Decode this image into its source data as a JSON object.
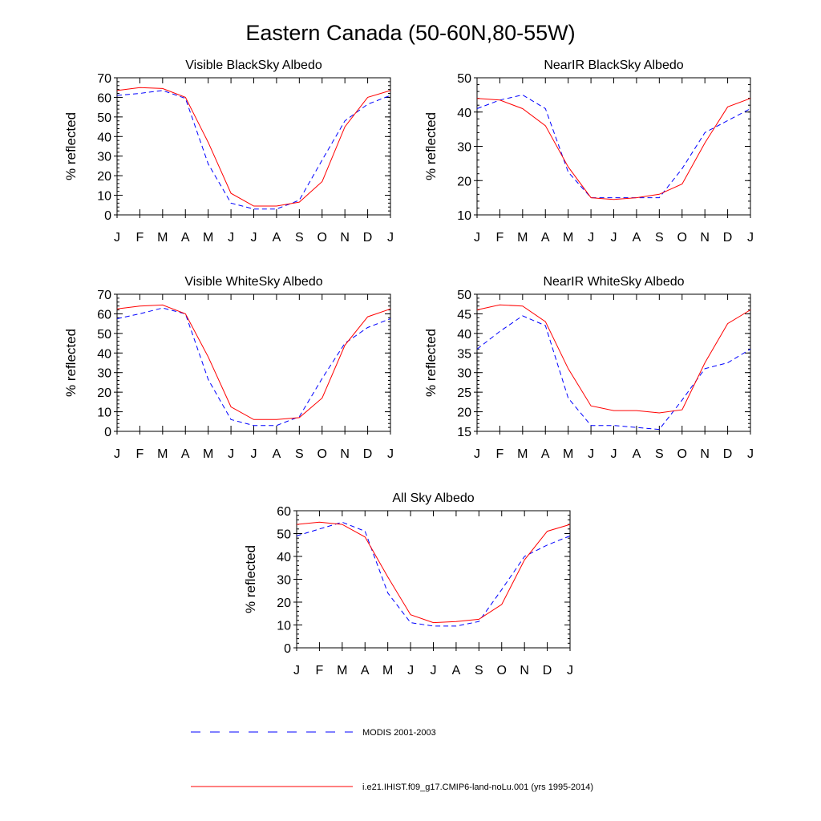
{
  "title": "Eastern Canada (50-60N,80-55W)",
  "legend": {
    "entries": [
      {
        "label": "MODIS 2001-2003",
        "color": "#0000ff",
        "dashed": true
      },
      {
        "label": "i.e21.IHIST.f09_g17.CMIP6-land-noLu.001 (yrs 1995-2014)",
        "color": "#ff0000",
        "dashed": false
      }
    ]
  },
  "chart_data": [
    {
      "type": "line",
      "title": "Visible BlackSky Albedo",
      "ylabel": "% reflected",
      "xlabel": "",
      "categories": [
        "J",
        "F",
        "M",
        "A",
        "M",
        "J",
        "J",
        "A",
        "S",
        "O",
        "N",
        "D",
        "J"
      ],
      "ylim": [
        0,
        70
      ],
      "yticks": [
        0,
        10,
        20,
        30,
        40,
        50,
        60,
        70
      ],
      "grid": false,
      "series": [
        {
          "name": "MODIS 2001-2003",
          "color": "#0000ff",
          "dashed": true,
          "values": [
            61,
            62,
            63.5,
            59.5,
            26,
            6,
            3,
            3,
            7.5,
            28,
            48,
            56.5,
            61
          ]
        },
        {
          "name": "i.e21.IHIST.f09_g17.CMIP6-land-noLu.001 (yrs 1995-2014)",
          "color": "#ff0000",
          "dashed": false,
          "values": [
            63.5,
            65,
            64.5,
            60,
            37,
            11,
            4.5,
            4.5,
            6.5,
            17,
            45,
            60,
            63.5
          ]
        }
      ]
    },
    {
      "type": "line",
      "title": "NearIR BlackSky Albedo",
      "ylabel": "% reflected",
      "xlabel": "",
      "categories": [
        "J",
        "F",
        "M",
        "A",
        "M",
        "J",
        "J",
        "A",
        "S",
        "O",
        "N",
        "D",
        "J"
      ],
      "ylim": [
        10,
        50
      ],
      "yticks": [
        10,
        20,
        30,
        40,
        50
      ],
      "grid": false,
      "series": [
        {
          "name": "MODIS 2001-2003",
          "color": "#0000ff",
          "dashed": true,
          "values": [
            41,
            43.5,
            45,
            41,
            22.5,
            15,
            15,
            15,
            15,
            23.5,
            34,
            37.5,
            41
          ]
        },
        {
          "name": "i.e21.IHIST.f09_g17.CMIP6-land-noLu.001 (yrs 1995-2014)",
          "color": "#ff0000",
          "dashed": false,
          "values": [
            44,
            43.5,
            41,
            36,
            24,
            15,
            14.5,
            15,
            16,
            19,
            31,
            41.5,
            44
          ]
        }
      ]
    },
    {
      "type": "line",
      "title": "Visible WhiteSky Albedo",
      "ylabel": "% reflected",
      "xlabel": "",
      "categories": [
        "J",
        "F",
        "M",
        "A",
        "M",
        "J",
        "J",
        "A",
        "S",
        "O",
        "N",
        "D",
        "J"
      ],
      "ylim": [
        0,
        70
      ],
      "yticks": [
        0,
        10,
        20,
        30,
        40,
        50,
        60,
        70
      ],
      "grid": false,
      "series": [
        {
          "name": "MODIS 2001-2003",
          "color": "#0000ff",
          "dashed": true,
          "values": [
            57.5,
            60,
            63,
            60,
            26.5,
            6,
            3,
            3,
            7.5,
            27,
            45,
            53,
            57.5
          ]
        },
        {
          "name": "i.e21.IHIST.f09_g17.CMIP6-land-noLu.001 (yrs 1995-2014)",
          "color": "#ff0000",
          "dashed": false,
          "values": [
            62.5,
            64,
            64.5,
            60,
            38,
            12.5,
            6,
            6,
            7,
            17,
            44,
            58.5,
            62.5
          ]
        }
      ]
    },
    {
      "type": "line",
      "title": "NearIR WhiteSky Albedo",
      "ylabel": "% reflected",
      "xlabel": "",
      "categories": [
        "J",
        "F",
        "M",
        "A",
        "M",
        "J",
        "J",
        "A",
        "S",
        "O",
        "N",
        "D",
        "J"
      ],
      "ylim": [
        15,
        50
      ],
      "yticks": [
        15,
        20,
        25,
        30,
        35,
        40,
        45,
        50
      ],
      "grid": false,
      "series": [
        {
          "name": "MODIS 2001-2003",
          "color": "#0000ff",
          "dashed": true,
          "values": [
            36,
            40.5,
            44.5,
            42,
            23.5,
            16.5,
            16.5,
            16,
            15.5,
            23,
            31,
            32.5,
            36
          ]
        },
        {
          "name": "i.e21.IHIST.f09_g17.CMIP6-land-noLu.001 (yrs 1995-2014)",
          "color": "#ff0000",
          "dashed": false,
          "values": [
            46,
            47.3,
            47,
            43,
            31,
            21.5,
            20.3,
            20.3,
            19.7,
            20.5,
            32.5,
            42.5,
            46
          ]
        }
      ]
    },
    {
      "type": "line",
      "title": "All Sky Albedo",
      "ylabel": "% reflected",
      "xlabel": "",
      "categories": [
        "J",
        "F",
        "M",
        "A",
        "M",
        "J",
        "J",
        "A",
        "S",
        "O",
        "N",
        "D",
        "J"
      ],
      "ylim": [
        0,
        60
      ],
      "yticks": [
        0,
        10,
        20,
        30,
        40,
        50,
        60
      ],
      "grid": false,
      "series": [
        {
          "name": "MODIS 2001-2003",
          "color": "#0000ff",
          "dashed": true,
          "values": [
            49,
            52,
            55,
            51,
            24,
            11,
            9.5,
            9.5,
            11.5,
            25.5,
            40,
            45,
            49
          ]
        },
        {
          "name": "i.e21.IHIST.f09_g17.CMIP6-land-noLu.001 (yrs 1995-2014)",
          "color": "#ff0000",
          "dashed": false,
          "values": [
            54,
            55,
            54,
            48.5,
            31,
            14.5,
            11,
            11.5,
            12.5,
            19,
            38.5,
            51,
            54
          ]
        }
      ]
    }
  ]
}
